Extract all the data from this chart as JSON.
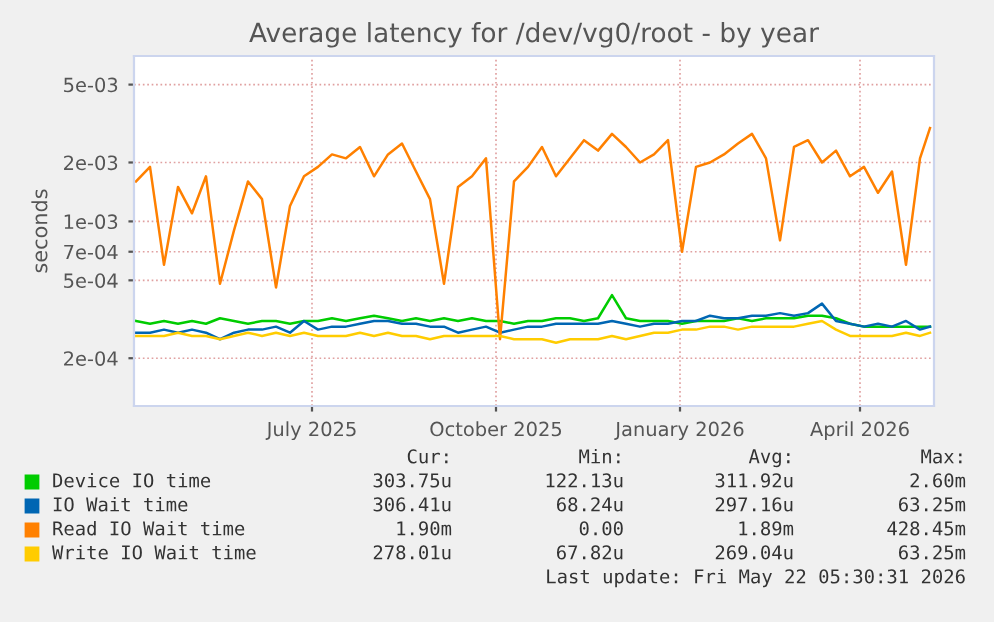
{
  "chart_data": {
    "type": "line",
    "title": "Average latency for /dev/vg0/root - by year",
    "ylabel": "seconds",
    "log": "y",
    "grid": true,
    "legend": "bottom",
    "line_style": "solid",
    "marker": "none",
    "x": [
      "2025-04-04",
      "2025-04-11",
      "2025-04-18",
      "2025-04-25",
      "2025-05-02",
      "2025-05-09",
      "2025-05-16",
      "2025-05-23",
      "2025-05-30",
      "2025-06-06",
      "2025-06-13",
      "2025-06-20",
      "2025-06-27",
      "2025-07-04",
      "2025-07-11",
      "2025-07-18",
      "2025-07-25",
      "2025-08-01",
      "2025-08-08",
      "2025-08-15",
      "2025-08-22",
      "2025-08-29",
      "2025-09-05",
      "2025-09-12",
      "2025-09-19",
      "2025-09-26",
      "2025-10-03",
      "2025-10-10",
      "2025-10-17",
      "2025-10-24",
      "2025-10-31",
      "2025-11-07",
      "2025-11-14",
      "2025-11-21",
      "2025-11-28",
      "2025-12-05",
      "2025-12-12",
      "2025-12-19",
      "2025-12-26",
      "2026-01-02",
      "2026-01-09",
      "2026-01-16",
      "2026-01-23",
      "2026-01-30",
      "2026-02-06",
      "2026-02-13",
      "2026-02-20",
      "2026-02-27",
      "2026-03-06",
      "2026-03-13",
      "2026-03-20",
      "2026-03-27",
      "2026-04-03",
      "2026-04-10",
      "2026-04-17",
      "2026-04-24",
      "2026-05-01",
      "2026-05-06"
    ],
    "xlim": [
      "2025-04-03",
      "2026-05-08"
    ],
    "xticks": [
      {
        "value": "2025-07-01",
        "label": "July 2025"
      },
      {
        "value": "2025-10-01",
        "label": "October 2025"
      },
      {
        "value": "2026-01-01",
        "label": "January 2026"
      },
      {
        "value": "2026-04-01",
        "label": "April 2026"
      }
    ],
    "ylim": [
      0.000114,
      0.007
    ],
    "yticks": [
      {
        "value": 0.0002,
        "label": "2e-04"
      },
      {
        "value": 0.0005,
        "label": "5e-04"
      },
      {
        "value": 0.0007,
        "label": "7e-04"
      },
      {
        "value": 0.001,
        "label": "1e-03"
      },
      {
        "value": 0.002,
        "label": "2e-03"
      },
      {
        "value": 0.005,
        "label": "5e-03"
      }
    ],
    "series": [
      {
        "name": "Device IO time",
        "color": "#00cc00",
        "values": [
          0.00031,
          0.0003,
          0.00031,
          0.0003,
          0.00031,
          0.0003,
          0.00032,
          0.00031,
          0.0003,
          0.00031,
          0.00031,
          0.0003,
          0.00031,
          0.00031,
          0.00032,
          0.00031,
          0.00032,
          0.00033,
          0.00032,
          0.00031,
          0.00032,
          0.00031,
          0.00032,
          0.00031,
          0.00032,
          0.00031,
          0.00031,
          0.0003,
          0.00031,
          0.00031,
          0.00032,
          0.00032,
          0.00031,
          0.00032,
          0.00042,
          0.00032,
          0.00031,
          0.00031,
          0.00031,
          0.0003,
          0.00031,
          0.00031,
          0.00031,
          0.00032,
          0.00031,
          0.00032,
          0.00032,
          0.00032,
          0.00033,
          0.00033,
          0.00032,
          0.0003,
          0.00029,
          0.00029,
          0.00029,
          0.00029,
          0.00029,
          0.00029
        ]
      },
      {
        "name": "IO Wait time",
        "color": "#0066b3",
        "values": [
          0.00027,
          0.00027,
          0.00028,
          0.00027,
          0.00028,
          0.00027,
          0.00025,
          0.00027,
          0.00028,
          0.00028,
          0.00029,
          0.00027,
          0.00031,
          0.00028,
          0.00029,
          0.00029,
          0.0003,
          0.00031,
          0.00031,
          0.0003,
          0.0003,
          0.00029,
          0.00029,
          0.00027,
          0.00028,
          0.00029,
          0.00027,
          0.00028,
          0.00029,
          0.00029,
          0.0003,
          0.0003,
          0.0003,
          0.0003,
          0.00031,
          0.0003,
          0.00029,
          0.0003,
          0.0003,
          0.00031,
          0.00031,
          0.00033,
          0.00032,
          0.00032,
          0.00033,
          0.00033,
          0.00034,
          0.00033,
          0.00034,
          0.00038,
          0.00031,
          0.0003,
          0.00029,
          0.0003,
          0.00029,
          0.00031,
          0.00028,
          0.00029
        ]
      },
      {
        "name": "Read IO Wait time",
        "color": "#ff8000",
        "values": [
          0.0016,
          0.0019,
          0.0006,
          0.0015,
          0.0011,
          0.0017,
          0.00048,
          0.0009,
          0.0016,
          0.0013,
          0.00046,
          0.0012,
          0.0017,
          0.0019,
          0.0022,
          0.0021,
          0.0024,
          0.0017,
          0.0022,
          0.0025,
          0.0018,
          0.0013,
          0.00048,
          0.0015,
          0.0017,
          0.0021,
          0.00025,
          0.0016,
          0.0019,
          0.0024,
          0.0017,
          0.0021,
          0.0026,
          0.0023,
          0.0028,
          0.0024,
          0.002,
          0.0022,
          0.0026,
          0.0007,
          0.0019,
          0.002,
          0.0022,
          0.0025,
          0.0028,
          0.0021,
          0.0008,
          0.0024,
          0.0026,
          0.002,
          0.0023,
          0.0017,
          0.0019,
          0.0014,
          0.0018,
          0.0006,
          0.0021,
          0.003
        ]
      },
      {
        "name": "Write IO Wait time",
        "color": "#ffcc00",
        "values": [
          0.00026,
          0.00026,
          0.00026,
          0.00027,
          0.00026,
          0.00026,
          0.00025,
          0.00026,
          0.00027,
          0.00026,
          0.00027,
          0.00026,
          0.00027,
          0.00026,
          0.00026,
          0.00026,
          0.00027,
          0.00026,
          0.00027,
          0.00026,
          0.00026,
          0.00025,
          0.00026,
          0.00026,
          0.00026,
          0.00026,
          0.00026,
          0.00025,
          0.00025,
          0.00025,
          0.00024,
          0.00025,
          0.00025,
          0.00025,
          0.00026,
          0.00025,
          0.00026,
          0.00027,
          0.00027,
          0.00028,
          0.00028,
          0.00029,
          0.00029,
          0.00028,
          0.00029,
          0.00029,
          0.00029,
          0.00029,
          0.0003,
          0.00031,
          0.00028,
          0.00026,
          0.00026,
          0.00026,
          0.00026,
          0.00027,
          0.00026,
          0.00027
        ]
      }
    ],
    "annotations": [
      "Cur:",
      "Min:",
      "Avg:",
      "Max:",
      "303.75u",
      "122.13u",
      "311.92u",
      "2.60m",
      "306.41u",
      "68.24u",
      "297.16u",
      "63.25m",
      "1.90m",
      "0.00",
      "1.89m",
      "428.45m",
      "278.01u",
      "67.82u",
      "269.04u",
      "63.25m",
      "Last update: Fri May 22 05:30:31 2026"
    ]
  }
}
